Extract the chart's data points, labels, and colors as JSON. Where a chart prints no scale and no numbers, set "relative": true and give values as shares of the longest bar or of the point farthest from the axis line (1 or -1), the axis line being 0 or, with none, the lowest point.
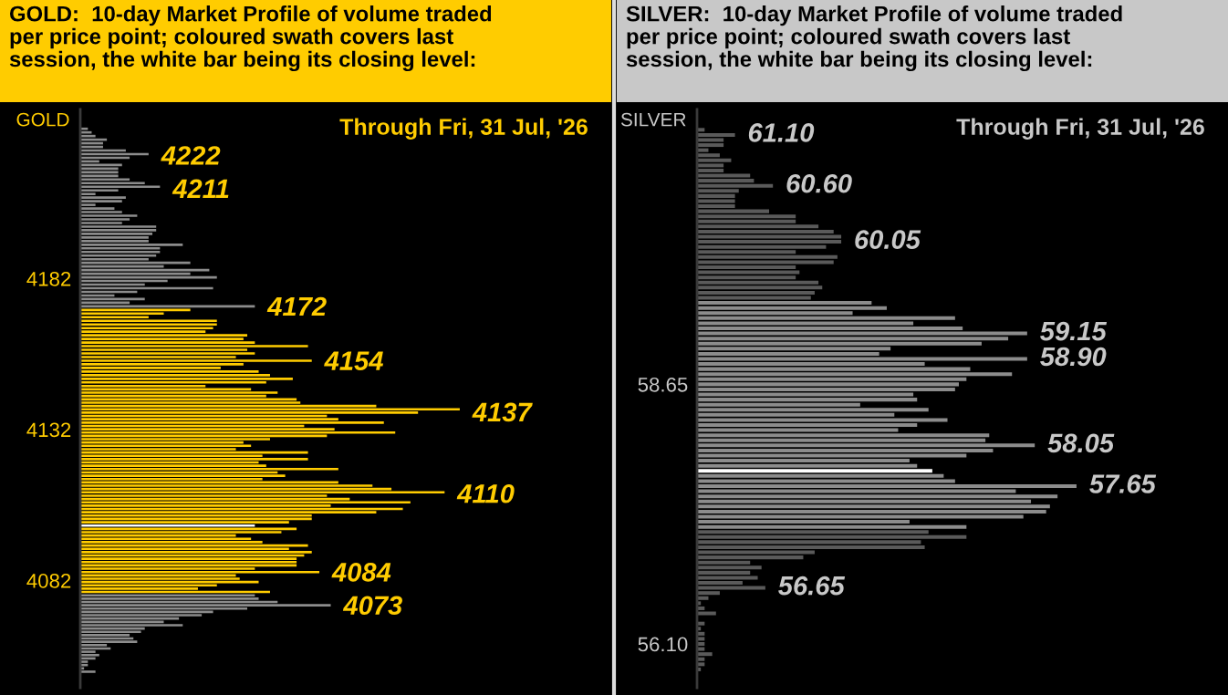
{
  "chart_data": [
    {
      "type": "bar",
      "orientation": "horizontal",
      "relative": true,
      "tick_labels": "y",
      "title": "GOLD:  10-day Market Profile of volume traded\nper price point; coloured swath covers last\nsession, the white bar being its closing level:",
      "subtitle": "Through Fri, 31 Jul, '26",
      "ylabel": "GOLD",
      "ylim": [
        4046.5,
        4238
      ],
      "yticks": [
        4082,
        4132,
        4182
      ],
      "x": [
        4231.6,
        4230.4,
        4229.2,
        4228.0,
        4226.8,
        4225.6,
        4224.4,
        4223.2,
        4222.0,
        4220.8,
        4219.6,
        4218.4,
        4217.2,
        4216.0,
        4214.8,
        4213.6,
        4212.4,
        4211.2,
        4210.0,
        4208.8,
        4207.6,
        4206.4,
        4205.2,
        4204.0,
        4202.8,
        4201.6,
        4200.4,
        4199.2,
        4198.0,
        4196.8,
        4195.6,
        4194.4,
        4193.2,
        4192.0,
        4190.8,
        4189.6,
        4188.4,
        4187.2,
        4186.0,
        4184.8,
        4183.6,
        4182.4,
        4181.2,
        4180.0,
        4178.8,
        4177.6,
        4176.4,
        4175.2,
        4174.0,
        4172.8,
        4171.6,
        4170.4,
        4169.2,
        4168.0,
        4166.8,
        4165.6,
        4164.4,
        4163.2,
        4162.0,
        4160.8,
        4159.6,
        4158.4,
        4157.2,
        4156.0,
        4154.8,
        4153.6,
        4152.4,
        4151.2,
        4150.0,
        4148.8,
        4147.6,
        4146.4,
        4145.3,
        4144.2,
        4143.1,
        4142.0,
        4140.9,
        4139.8,
        4138.7,
        4137.6,
        4136.5,
        4135.4,
        4134.3,
        4133.2,
        4132.1,
        4131.0,
        4129.9,
        4128.8,
        4127.7,
        4126.6,
        4125.5,
        4124.4,
        4123.3,
        4122.2,
        4121.1,
        4120.0,
        4118.9,
        4117.8,
        4116.7,
        4115.6,
        4114.5,
        4113.4,
        4112.3,
        4111.2,
        4110.1,
        4109.0,
        4107.9,
        4106.8,
        4105.7,
        4104.6,
        4103.5,
        4102.4,
        4101.3,
        4100.2,
        4099.1,
        4098.0,
        4096.9,
        4095.8,
        4094.7,
        4093.6,
        4092.5,
        4091.4,
        4090.3,
        4089.2,
        4088.1,
        4087.0,
        4085.9,
        4084.8,
        4083.7,
        4082.6,
        4081.5,
        4080.4,
        4079.3,
        4078.2,
        4077.1,
        4076.0,
        4074.9,
        4073.8,
        4072.7,
        4071.6,
        4070.5,
        4069.4,
        4068.3,
        4067.2,
        4066.1,
        4065.0,
        4063.9,
        4062.8,
        4061.7,
        4060.6,
        4059.5,
        4058.4,
        4057.3,
        4056.2,
        4055.1,
        4054.0,
        4052.9,
        4051.8
      ],
      "values": [
        0.02,
        0.03,
        0.04,
        0.07,
        0.06,
        0.06,
        0.12,
        0.18,
        0.13,
        0.05,
        0.11,
        0.1,
        0.1,
        0.1,
        0.13,
        0.17,
        0.21,
        0.1,
        0.04,
        0.12,
        0.11,
        0.04,
        0.09,
        0.11,
        0.15,
        0.13,
        0.11,
        0.2,
        0.2,
        0.19,
        0.18,
        0.18,
        0.27,
        0.21,
        0.21,
        0.2,
        0.18,
        0.29,
        0.22,
        0.34,
        0.29,
        0.36,
        0.23,
        0.17,
        0.35,
        0.15,
        0.09,
        0.17,
        0.13,
        0.46,
        0.29,
        0.22,
        0.18,
        0.36,
        0.36,
        0.35,
        0.33,
        0.44,
        0.43,
        0.46,
        0.6,
        0.44,
        0.46,
        0.41,
        0.61,
        0.43,
        0.37,
        0.47,
        0.5,
        0.56,
        0.49,
        0.33,
        0.45,
        0.52,
        0.49,
        0.57,
        0.58,
        0.78,
        1,
        0.89,
        0.65,
        0.68,
        0.8,
        0.59,
        0.67,
        0.83,
        0.65,
        0.5,
        0.43,
        0.45,
        0.41,
        0.6,
        0.48,
        0.6,
        0.47,
        0.49,
        0.68,
        0.52,
        0.54,
        0.48,
        0.68,
        0.77,
        0.82,
        0.96,
        0.65,
        0.71,
        0.87,
        0.66,
        0.85,
        0.78,
        0.61,
        0.61,
        0.55,
        0.46,
        0.57,
        0.53,
        0.41,
        0.45,
        0.48,
        0.6,
        0.55,
        0.61,
        0.59,
        0.57,
        0.57,
        0.57,
        0.46,
        0.63,
        0.41,
        0.42,
        0.47,
        0.36,
        0.31,
        0.5,
        0.46,
        0.47,
        0.52,
        0.66,
        0.44,
        0.35,
        0.32,
        0.26,
        0.22,
        0.27,
        0.17,
        0.16,
        0.13,
        0.14,
        0.15,
        0.07,
        0.08,
        0.04,
        0.05,
        0.04,
        0.02,
        0.02,
        0.01,
        0.04
      ],
      "colors": [
        "#8c8c8c",
        "#8c8c8c",
        "#8c8c8c",
        "#8c8c8c",
        "#8c8c8c",
        "#8c8c8c",
        "#8c8c8c",
        "#8c8c8c",
        "#8c8c8c",
        "#8c8c8c",
        "#8c8c8c",
        "#8c8c8c",
        "#8c8c8c",
        "#8c8c8c",
        "#8c8c8c",
        "#8c8c8c",
        "#8c8c8c",
        "#8c8c8c",
        "#8c8c8c",
        "#8c8c8c",
        "#8c8c8c",
        "#8c8c8c",
        "#8c8c8c",
        "#8c8c8c",
        "#8c8c8c",
        "#8c8c8c",
        "#8c8c8c",
        "#8c8c8c",
        "#8c8c8c",
        "#8c8c8c",
        "#8c8c8c",
        "#8c8c8c",
        "#8c8c8c",
        "#8c8c8c",
        "#8c8c8c",
        "#8c8c8c",
        "#8c8c8c",
        "#8c8c8c",
        "#8c8c8c",
        "#8c8c8c",
        "#8c8c8c",
        "#8c8c8c",
        "#8c8c8c",
        "#8c8c8c",
        "#8c8c8c",
        "#8c8c8c",
        "#8c8c8c",
        "#8c8c8c",
        "#8c8c8c",
        "#8c8c8c",
        "#ffcc00",
        "#ffcc00",
        "#ffcc00",
        "#ffcc00",
        "#ffcc00",
        "#ffcc00",
        "#ffcc00",
        "#ffcc00",
        "#ffcc00",
        "#ffcc00",
        "#ffcc00",
        "#ffcc00",
        "#ffcc00",
        "#ffcc00",
        "#ffcc00",
        "#ffcc00",
        "#ffcc00",
        "#ffcc00",
        "#ffcc00",
        "#ffcc00",
        "#ffcc00",
        "#ffcc00",
        "#ffcc00",
        "#ffcc00",
        "#ffcc00",
        "#ffcc00",
        "#ffcc00",
        "#ffcc00",
        "#ffcc00",
        "#ffcc00",
        "#ffcc00",
        "#ffcc00",
        "#ffcc00",
        "#ffcc00",
        "#ffcc00",
        "#ffcc00",
        "#ffcc00",
        "#ffcc00",
        "#ffcc00",
        "#ffcc00",
        "#ffcc00",
        "#ffcc00",
        "#ffcc00",
        "#ffcc00",
        "#ffcc00",
        "#ffcc00",
        "#ffcc00",
        "#ffcc00",
        "#ffcc00",
        "#ffcc00",
        "#ffcc00",
        "#ffcc00",
        "#ffcc00",
        "#ffcc00",
        "#ffcc00",
        "#ffcc00",
        "#ffcc00",
        "#ffcc00",
        "#ffcc00",
        "#ffcc00",
        "#ffcc00",
        "#ffcc00",
        "#ffcc00",
        "#ffffff",
        "#ffcc00",
        "#ffcc00",
        "#ffcc00",
        "#ffcc00",
        "#ffcc00",
        "#ffcc00",
        "#ffcc00",
        "#ffcc00",
        "#ffcc00",
        "#ffcc00",
        "#ffcc00",
        "#ffcc00",
        "#ffcc00",
        "#ffcc00",
        "#ffcc00",
        "#ffcc00",
        "#ffcc00",
        "#ffcc00",
        "#ffcc00",
        "#ffcc00",
        "#8c8c8c",
        "#8c8c8c",
        "#8c8c8c",
        "#8c8c8c",
        "#8c8c8c",
        "#8c8c8c",
        "#8c8c8c",
        "#8c8c8c",
        "#8c8c8c",
        "#8c8c8c",
        "#8c8c8c",
        "#8c8c8c",
        "#8c8c8c",
        "#8c8c8c",
        "#8c8c8c",
        "#8c8c8c",
        "#8c8c8c",
        "#8c8c8c",
        "#8c8c8c",
        "#8c8c8c",
        "#8c8c8c",
        "#8c8c8c",
        "#8c8c8c",
        "#8c8c8c"
      ],
      "annotations": [
        {
          "text": "4222",
          "x": 0.18,
          "y": 4222
        },
        {
          "text": "4211",
          "x": 0.21,
          "y": 4211
        },
        {
          "text": "4172",
          "x": 0.46,
          "y": 4172
        },
        {
          "text": "4154",
          "x": 0.61,
          "y": 4154
        },
        {
          "text": "4137",
          "x": 1,
          "y": 4137
        },
        {
          "text": "4110",
          "x": 0.96,
          "y": 4110
        },
        {
          "text": "4084",
          "x": 0.63,
          "y": 4084
        },
        {
          "text": "4073",
          "x": 0.66,
          "y": 4073
        }
      ]
    },
    {
      "type": "bar",
      "orientation": "horizontal",
      "relative": true,
      "tick_labels": "y",
      "title": "SILVER:  10-day Market Profile of volume traded\nper price point; coloured swath covers last\nsession, the white bar being its closing level:",
      "subtitle": "Through Fri, 31 Jul, '26",
      "ylabel": "SILVER",
      "ylim": [
        55.67,
        61.35
      ],
      "yticks": [
        {
          "value": 56.1,
          "label": "56.10"
        },
        {
          "value": 58.65,
          "label": "58.65"
        }
      ],
      "x": [
        61.15,
        61.1,
        61.05,
        61.0,
        60.95,
        60.9,
        60.85,
        60.8,
        60.75,
        60.7,
        60.65,
        60.6,
        60.55,
        60.5,
        60.45,
        60.4,
        60.35,
        60.3,
        60.25,
        60.2,
        60.15,
        60.1,
        60.05,
        60.0,
        59.95,
        59.9,
        59.85,
        59.8,
        59.75,
        59.7,
        59.65,
        59.6,
        59.55,
        59.5,
        59.45,
        59.4,
        59.35,
        59.3,
        59.25,
        59.2,
        59.15,
        59.1,
        59.05,
        59.0,
        58.95,
        58.9,
        58.85,
        58.8,
        58.75,
        58.7,
        58.65,
        58.6,
        58.55,
        58.5,
        58.45,
        58.4,
        58.35,
        58.3,
        58.25,
        58.2,
        58.15,
        58.1,
        58.05,
        58.0,
        57.95,
        57.9,
        57.85,
        57.8,
        57.75,
        57.7,
        57.65,
        57.6,
        57.55,
        57.5,
        57.45,
        57.4,
        57.35,
        57.3,
        57.25,
        57.2,
        57.15,
        57.1,
        57.05,
        57.0,
        56.95,
        56.9,
        56.85,
        56.8,
        56.75,
        56.7,
        56.65,
        56.6,
        56.55,
        56.5,
        56.45,
        56.4,
        56.35,
        56.3,
        56.25,
        56.2,
        56.15,
        56.1,
        56.05,
        56.0,
        55.95,
        55.9,
        55.85
      ],
      "values": [
        0.02,
        0.1,
        0.07,
        0.07,
        0.03,
        0.06,
        0.09,
        0.07,
        0.07,
        0.14,
        0.15,
        0.2,
        0.11,
        0.1,
        0.1,
        0.1,
        0.19,
        0.26,
        0.26,
        0.32,
        0.36,
        0.38,
        0.38,
        0.34,
        0.26,
        0.37,
        0.36,
        0.26,
        0.27,
        0.26,
        0.32,
        0.33,
        0.31,
        0.3,
        0.46,
        0.5,
        0.41,
        0.68,
        0.57,
        0.7,
        0.87,
        0.82,
        0.75,
        0.51,
        0.48,
        0.87,
        0.6,
        0.72,
        0.83,
        0.71,
        0.69,
        0.68,
        0.57,
        0.58,
        0.43,
        0.61,
        0.52,
        0.66,
        0.58,
        0.53,
        0.77,
        0.76,
        0.89,
        0.78,
        0.71,
        0.56,
        0.58,
        0.62,
        0.65,
        0.68,
        1,
        0.84,
        0.95,
        0.88,
        0.93,
        0.92,
        0.86,
        0.56,
        0.71,
        0.61,
        0.71,
        0.59,
        0.6,
        0.31,
        0.28,
        0.14,
        0.17,
        0.14,
        0.16,
        0.12,
        0.18,
        0.06,
        0.03,
        0.01,
        0.02,
        0.05,
        null,
        0.02,
        0.01,
        0.02,
        0.02,
        0.02,
        0.02,
        0.04,
        0.02,
        0.02,
        0.01
      ],
      "colors": [
        "#5a5a5a",
        "#5a5a5a",
        "#5a5a5a",
        "#5a5a5a",
        "#5a5a5a",
        "#5a5a5a",
        "#5a5a5a",
        "#5a5a5a",
        "#5a5a5a",
        "#5a5a5a",
        "#5a5a5a",
        "#5a5a5a",
        "#5a5a5a",
        "#5a5a5a",
        "#5a5a5a",
        "#5a5a5a",
        "#5a5a5a",
        "#5a5a5a",
        "#5a5a5a",
        "#5a5a5a",
        "#5a5a5a",
        "#5a5a5a",
        "#5a5a5a",
        "#5a5a5a",
        "#5a5a5a",
        "#5a5a5a",
        "#5a5a5a",
        "#5a5a5a",
        "#5a5a5a",
        "#5a5a5a",
        "#5a5a5a",
        "#5a5a5a",
        "#5a5a5a",
        "#5a5a5a",
        "#8c8c8c",
        "#8c8c8c",
        "#8c8c8c",
        "#8c8c8c",
        "#8c8c8c",
        "#8c8c8c",
        "#8c8c8c",
        "#8c8c8c",
        "#8c8c8c",
        "#8c8c8c",
        "#8c8c8c",
        "#8c8c8c",
        "#8c8c8c",
        "#8c8c8c",
        "#8c8c8c",
        "#8c8c8c",
        "#8c8c8c",
        "#8c8c8c",
        "#8c8c8c",
        "#8c8c8c",
        "#8c8c8c",
        "#8c8c8c",
        "#8c8c8c",
        "#8c8c8c",
        "#8c8c8c",
        "#8c8c8c",
        "#8c8c8c",
        "#8c8c8c",
        "#8c8c8c",
        "#8c8c8c",
        "#8c8c8c",
        "#8c8c8c",
        "#8c8c8c",
        "#ffffff",
        "#8c8c8c",
        "#8c8c8c",
        "#8c8c8c",
        "#8c8c8c",
        "#8c8c8c",
        "#8c8c8c",
        "#8c8c8c",
        "#8c8c8c",
        "#8c8c8c",
        "#8c8c8c",
        "#8c8c8c",
        "#5a5a5a",
        "#5a5a5a",
        "#5a5a5a",
        "#5a5a5a",
        "#5a5a5a",
        "#5a5a5a",
        "#5a5a5a",
        "#5a5a5a",
        "#5a5a5a",
        "#5a5a5a",
        "#5a5a5a",
        "#5a5a5a",
        "#5a5a5a",
        "#5a5a5a",
        "#5a5a5a",
        "#5a5a5a",
        "#5a5a5a",
        "#5a5a5a",
        "#5a5a5a",
        "#5a5a5a",
        "#5a5a5a",
        "#5a5a5a",
        "#5a5a5a",
        "#5a5a5a",
        "#5a5a5a",
        "#5a5a5a",
        "#5a5a5a",
        "#5a5a5a"
      ],
      "annotations": [
        {
          "text": "61.10",
          "x": 0.1,
          "y": 61.1
        },
        {
          "text": "60.60",
          "x": 0.2,
          "y": 60.6
        },
        {
          "text": "60.05",
          "x": 0.38,
          "y": 60.05
        },
        {
          "text": "59.15",
          "x": 0.87,
          "y": 59.15
        },
        {
          "text": "58.90",
          "x": 0.87,
          "y": 58.9
        },
        {
          "text": "58.05",
          "x": 0.89,
          "y": 58.05
        },
        {
          "text": "57.65",
          "x": 1,
          "y": 57.65
        },
        {
          "text": "56.65",
          "x": 0.18,
          "y": 56.65
        }
      ]
    }
  ]
}
